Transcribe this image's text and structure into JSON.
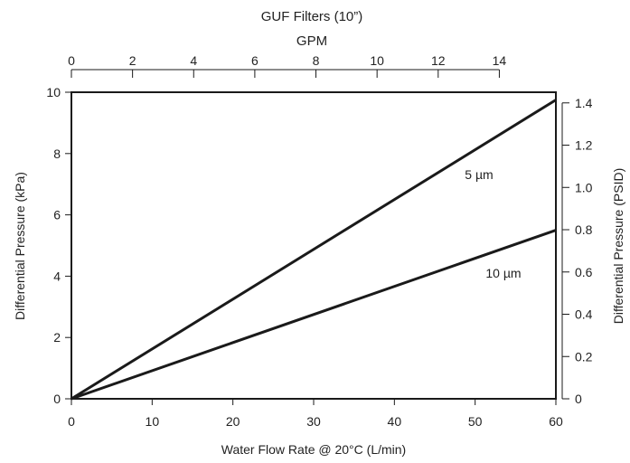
{
  "chart_data": {
    "type": "line",
    "title": "GUF Filters (10”)",
    "x_top_label": "GPM",
    "xlabel": "Water Flow Rate @ 20°C (L/min)",
    "ylabel": "Differential Pressure (kPa)",
    "ylabel_right": "Differential Pressure (PSID)",
    "xlim": [
      0,
      60
    ],
    "ylim": [
      0,
      10
    ],
    "x_ticks": [
      "0",
      "10",
      "20",
      "30",
      "40",
      "50",
      "60"
    ],
    "y_ticks": [
      "0",
      "2",
      "4",
      "6",
      "8",
      "10"
    ],
    "x_top_ticks": [
      "0",
      "2",
      "4",
      "6",
      "8",
      "10",
      "12",
      "14"
    ],
    "y_right_ticks": [
      "0",
      "0.2",
      "0.4",
      "0.6",
      "0.8",
      "1.0",
      "1.2",
      "1.4"
    ],
    "series": [
      {
        "name": "5 µm",
        "x": [
          0,
          60
        ],
        "y": [
          0,
          9.75
        ]
      },
      {
        "name": "10 µm",
        "x": [
          0,
          60
        ],
        "y": [
          0,
          5.5
        ]
      }
    ],
    "grid": false,
    "line_color": "#1a1a1a"
  }
}
